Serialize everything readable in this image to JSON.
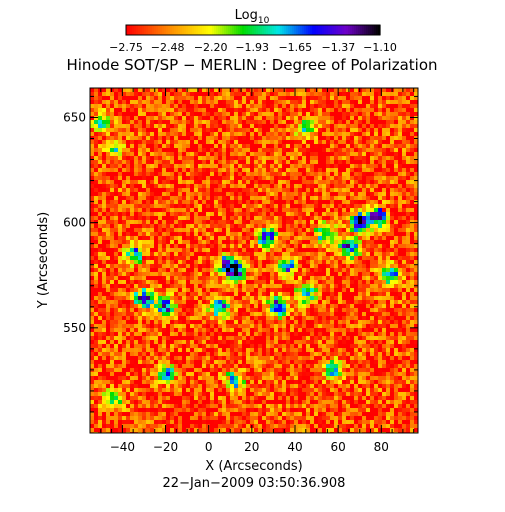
{
  "chart_data": {
    "type": "heatmap",
    "title": "Hinode SOT/SP − MERLIN : Degree of Polarization",
    "xlabel": "X (Arcseconds)",
    "ylabel": "Y (Arcseconds)",
    "timestamp": "22−Jan−2009 03:50:36.908",
    "xlim": [
      -55,
      97
    ],
    "ylim": [
      500,
      664
    ],
    "x_ticks": [
      -40,
      -20,
      0,
      20,
      40,
      60,
      80
    ],
    "x_tick_labels": [
      "−40",
      "−20",
      "0",
      "20",
      "40",
      "60",
      "80"
    ],
    "y_ticks": [
      550,
      600,
      650
    ],
    "y_tick_labels": [
      "550",
      "600",
      "650"
    ],
    "colorbar": {
      "title_base": "Log",
      "title_sub": "10",
      "range": [
        -2.75,
        -1.1
      ],
      "ticks": [
        -2.75,
        -2.48,
        -2.2,
        -1.93,
        -1.65,
        -1.37,
        -1.1
      ],
      "tick_labels": [
        "−2.75",
        "−2.48",
        "−2.20",
        "−1.93",
        "−1.65",
        "−1.37",
        "−1.10"
      ],
      "colormap": "rainbow (red → yellow → green → cyan → blue → violet → black)"
    },
    "dominant_level": -2.6,
    "features": [
      {
        "x": 70,
        "y": 600,
        "peak": -1.2
      },
      {
        "x": 78,
        "y": 603,
        "peak": -1.3
      },
      {
        "x": 65,
        "y": 588,
        "peak": -1.3
      },
      {
        "x": 54,
        "y": 595,
        "peak": -1.5
      },
      {
        "x": 13,
        "y": 577,
        "peak": -1.2
      },
      {
        "x": 8,
        "y": 580,
        "peak": -1.5
      },
      {
        "x": 27,
        "y": 593,
        "peak": -1.4
      },
      {
        "x": 36,
        "y": 579,
        "peak": -1.6
      },
      {
        "x": -30,
        "y": 564,
        "peak": -1.3
      },
      {
        "x": -20,
        "y": 560,
        "peak": -1.4
      },
      {
        "x": -34,
        "y": 585,
        "peak": -1.7
      },
      {
        "x": 32,
        "y": 560,
        "peak": -1.3
      },
      {
        "x": 45,
        "y": 566,
        "peak": -1.6
      },
      {
        "x": 5,
        "y": 560,
        "peak": -1.4
      },
      {
        "x": -20,
        "y": 528,
        "peak": -1.7
      },
      {
        "x": 12,
        "y": 525,
        "peak": -1.7
      },
      {
        "x": 58,
        "y": 530,
        "peak": -1.7
      },
      {
        "x": 84,
        "y": 575,
        "peak": -1.6
      },
      {
        "x": -45,
        "y": 516,
        "peak": -1.8
      },
      {
        "x": 45,
        "y": 645,
        "peak": -1.9
      },
      {
        "x": -44,
        "y": 635,
        "peak": -1.9
      },
      {
        "x": -50,
        "y": 648,
        "peak": -1.9
      }
    ],
    "grid": false
  }
}
